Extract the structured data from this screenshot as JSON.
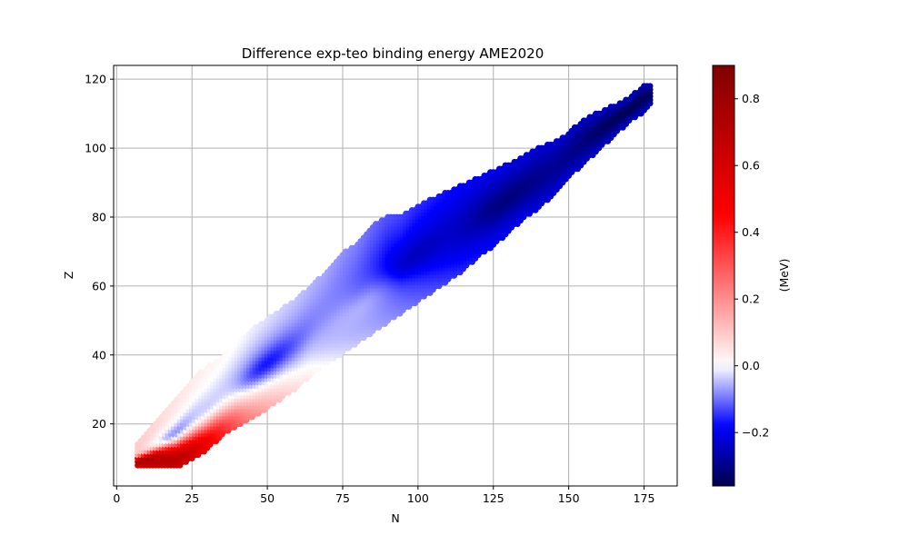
{
  "chart_data": {
    "type": "heatmap",
    "title": "Difference exp-teo binding energy AME2020",
    "xlabel": "N",
    "ylabel": "Z",
    "xlim": [
      -1,
      186
    ],
    "ylim": [
      2,
      124
    ],
    "xticks": [
      0,
      25,
      50,
      75,
      100,
      125,
      150,
      175
    ],
    "yticks": [
      20,
      40,
      60,
      80,
      100,
      120
    ],
    "grid": true,
    "colormap": "seismic",
    "colorbar": {
      "label": "(MeV)",
      "vmin": -0.36,
      "vmax": 0.9,
      "ticks": [
        0.8,
        0.6,
        0.4,
        0.2,
        0.0,
        -0.2
      ],
      "tick_labels": [
        "0.8",
        "0.6",
        "0.4",
        "0.2",
        "0.0",
        "−0.2"
      ]
    },
    "band": {
      "description_values_in_data_units": "Z range of plotted nuclei for given N (upper / lower boundary)",
      "upper": [
        [
          7,
          14
        ],
        [
          10,
          17
        ],
        [
          14,
          21
        ],
        [
          18,
          25
        ],
        [
          22,
          29
        ],
        [
          26,
          33
        ],
        [
          30,
          36
        ],
        [
          35,
          39
        ],
        [
          40,
          43
        ],
        [
          45,
          47
        ],
        [
          50,
          50
        ],
        [
          55,
          53
        ],
        [
          60,
          56
        ],
        [
          65,
          60
        ],
        [
          70,
          64
        ],
        [
          75,
          69
        ],
        [
          80,
          72
        ],
        [
          85,
          77
        ],
        [
          90,
          80
        ],
        [
          95,
          80
        ],
        [
          100,
          83
        ],
        [
          105,
          85
        ],
        [
          110,
          87
        ],
        [
          115,
          89
        ],
        [
          120,
          91
        ],
        [
          125,
          93
        ],
        [
          130,
          95
        ],
        [
          135,
          97
        ],
        [
          140,
          100
        ],
        [
          145,
          101
        ],
        [
          150,
          104
        ],
        [
          155,
          108
        ],
        [
          160,
          110
        ],
        [
          165,
          112
        ],
        [
          170,
          114
        ],
        [
          175,
          118
        ],
        [
          177,
          118
        ]
      ],
      "lower": [
        [
          7,
          8
        ],
        [
          10,
          8
        ],
        [
          15,
          8
        ],
        [
          20,
          8
        ],
        [
          25,
          10
        ],
        [
          30,
          13
        ],
        [
          35,
          17
        ],
        [
          40,
          20
        ],
        [
          45,
          22
        ],
        [
          50,
          25
        ],
        [
          55,
          28
        ],
        [
          60,
          31
        ],
        [
          65,
          35
        ],
        [
          70,
          38
        ],
        [
          75,
          41
        ],
        [
          80,
          44
        ],
        [
          85,
          47
        ],
        [
          90,
          50
        ],
        [
          95,
          53
        ],
        [
          100,
          56
        ],
        [
          105,
          59
        ],
        [
          110,
          62
        ],
        [
          115,
          65
        ],
        [
          120,
          69
        ],
        [
          125,
          72
        ],
        [
          130,
          76
        ],
        [
          135,
          80
        ],
        [
          140,
          83
        ],
        [
          145,
          87
        ],
        [
          150,
          92
        ],
        [
          155,
          96
        ],
        [
          160,
          100
        ],
        [
          165,
          104
        ],
        [
          170,
          108
        ],
        [
          175,
          111
        ],
        [
          177,
          113
        ]
      ]
    },
    "color_field": {
      "description": "Approximate energy difference (MeV) at points along and across the band; t = 0 lower edge, 1 upper edge",
      "points": [
        {
          "N": 10,
          "t": 0.2,
          "value": 0.85
        },
        {
          "N": 20,
          "t": 0.1,
          "value": 0.75
        },
        {
          "N": 20,
          "t": 0.5,
          "value": -0.15
        },
        {
          "N": 30,
          "t": 0.5,
          "value": -0.05
        },
        {
          "N": 50,
          "t": 0.5,
          "value": -0.2
        },
        {
          "N": 80,
          "t": 0.3,
          "value": -0.05
        },
        {
          "N": 100,
          "t": 0.5,
          "value": -0.26
        },
        {
          "N": 130,
          "t": 0.5,
          "value": -0.32
        },
        {
          "N": 170,
          "t": 0.5,
          "value": -0.36
        }
      ]
    }
  }
}
